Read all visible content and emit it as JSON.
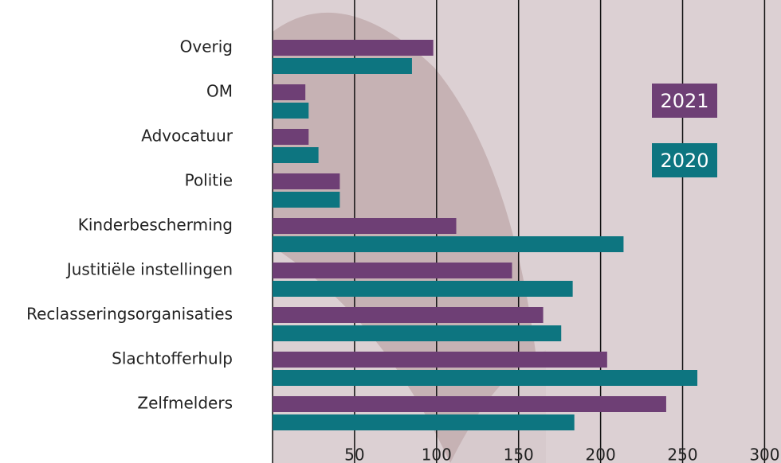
{
  "chart_data": {
    "type": "hbar",
    "categories": [
      "Overig",
      "OM",
      "Advocatuur",
      "Politie",
      "Kinderbescherming",
      "Justitiële instellingen",
      "Reclasseringsorganisaties",
      "Slachtofferhulp",
      "Zelfmelders"
    ],
    "series": [
      {
        "name": "2021",
        "color": "#6e3f75",
        "values": [
          98,
          20,
          22,
          41,
          112,
          146,
          165,
          204,
          240
        ]
      },
      {
        "name": "2020",
        "color": "#0d7580",
        "values": [
          85,
          22,
          28,
          41,
          214,
          183,
          176,
          259,
          184
        ]
      }
    ],
    "xlim": [
      0,
      310
    ],
    "xticks": [
      50,
      100,
      150,
      200,
      250,
      300
    ],
    "grid": true
  }
}
